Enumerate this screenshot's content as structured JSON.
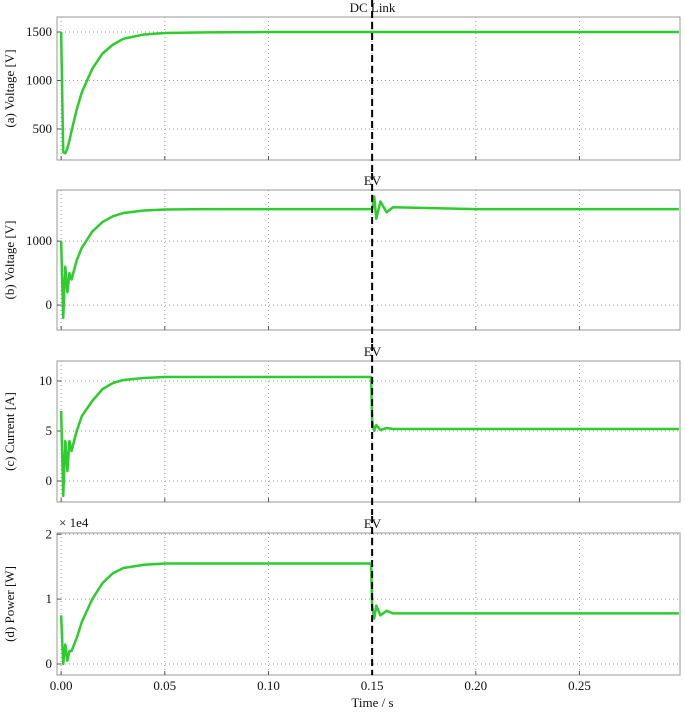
{
  "chart_data": [
    {
      "type": "line",
      "title": "DC Link",
      "ylabel": "(a) Voltage [V]",
      "x": [
        0,
        0.001,
        0.002,
        0.003,
        0.004,
        0.005,
        0.0075,
        0.01,
        0.015,
        0.02,
        0.025,
        0.03,
        0.04,
        0.05,
        0.07,
        0.1,
        0.149,
        0.1495,
        0.15,
        0.151,
        0.152,
        0.154,
        0.157,
        0.16,
        0.2,
        0.25,
        0.298
      ],
      "series": [
        {
          "color": "#2ecc2e",
          "values": [
            1500,
            260,
            250,
            300,
            380,
            480,
            700,
            880,
            1120,
            1280,
            1370,
            1430,
            1475,
            1490,
            1497,
            1500,
            1500,
            1500,
            1500,
            1500,
            1500,
            1500,
            1500,
            1500,
            1500,
            1500,
            1500
          ]
        }
      ],
      "vline": 0.15,
      "xlim": [
        -0.002,
        0.2985
      ],
      "xticks": [
        0,
        0.05,
        0.1,
        0.15,
        0.2,
        0.25
      ],
      "ylim": [
        180,
        1655
      ],
      "yticks": [
        500,
        1000,
        1500
      ],
      "grid": true
    },
    {
      "type": "line",
      "title": "EV",
      "ylabel": "(b) Voltage [V]",
      "x": [
        0,
        0.001,
        0.002,
        0.003,
        0.004,
        0.005,
        0.0075,
        0.01,
        0.015,
        0.02,
        0.025,
        0.03,
        0.04,
        0.05,
        0.07,
        0.1,
        0.149,
        0.1495,
        0.15,
        0.151,
        0.152,
        0.154,
        0.157,
        0.16,
        0.2,
        0.25,
        0.298
      ],
      "series": [
        {
          "color": "#2ecc2e",
          "values": [
            1000,
            -200,
            600,
            200,
            500,
            400,
            700,
            900,
            1150,
            1300,
            1390,
            1440,
            1480,
            1495,
            1500,
            1500,
            1500,
            1500,
            1500,
            1700,
            1350,
            1620,
            1450,
            1530,
            1500,
            1500,
            1500
          ]
        }
      ],
      "vline": 0.15,
      "xlim": [
        -0.002,
        0.2985
      ],
      "xticks": [
        0,
        0.05,
        0.1,
        0.15,
        0.2,
        0.25
      ],
      "ylim": [
        -390,
        1800
      ],
      "yticks": [
        0,
        1000
      ],
      "grid": true
    },
    {
      "type": "line",
      "title": "EV",
      "ylabel": "(c) Current [A]",
      "x": [
        0,
        0.001,
        0.002,
        0.003,
        0.004,
        0.005,
        0.0075,
        0.01,
        0.015,
        0.02,
        0.025,
        0.03,
        0.04,
        0.05,
        0.07,
        0.1,
        0.149,
        0.1495,
        0.15,
        0.151,
        0.152,
        0.154,
        0.157,
        0.16,
        0.2,
        0.25,
        0.298
      ],
      "series": [
        {
          "color": "#2ecc2e",
          "values": [
            7,
            -1.5,
            4,
            1,
            4,
            3,
            5,
            6.5,
            8,
            9.2,
            9.8,
            10.1,
            10.3,
            10.4,
            10.4,
            10.4,
            10.4,
            10.4,
            6,
            5,
            5.6,
            5.1,
            5.3,
            5.2,
            5.2,
            5.2,
            5.2
          ]
        }
      ],
      "vline": 0.15,
      "xlim": [
        -0.002,
        0.2985
      ],
      "xticks": [
        0,
        0.05,
        0.1,
        0.15,
        0.2,
        0.25
      ],
      "ylim": [
        -2.1,
        12
      ],
      "yticks": [
        0,
        5,
        10
      ],
      "grid": true
    },
    {
      "type": "line",
      "title": "EV",
      "ylabel": "(d) Power [W]",
      "xlabel": "Time / s",
      "offset_text": "× 1e4",
      "x": [
        0,
        0.001,
        0.002,
        0.003,
        0.004,
        0.005,
        0.0075,
        0.01,
        0.015,
        0.02,
        0.025,
        0.03,
        0.04,
        0.05,
        0.07,
        0.1,
        0.149,
        0.1495,
        0.15,
        0.151,
        0.152,
        0.154,
        0.157,
        0.16,
        0.2,
        0.25,
        0.298
      ],
      "series": [
        {
          "color": "#2ecc2e",
          "values": [
            0.75,
            0,
            0.3,
            0.05,
            0.2,
            0.2,
            0.4,
            0.65,
            1.0,
            1.25,
            1.4,
            1.48,
            1.53,
            1.55,
            1.55,
            1.55,
            1.55,
            1.55,
            0.9,
            0.7,
            0.9,
            0.75,
            0.82,
            0.78,
            0.78,
            0.78,
            0.78
          ]
        }
      ],
      "vline": 0.15,
      "xlim": [
        -0.002,
        0.2985
      ],
      "xticks": [
        {
          "value": 0,
          "label": "0.00"
        },
        {
          "value": 0.05,
          "label": "0.05"
        },
        {
          "value": 0.1,
          "label": "0.10"
        },
        {
          "value": 0.15,
          "label": "0.15"
        },
        {
          "value": 0.2,
          "label": "0.20"
        },
        {
          "value": 0.25,
          "label": "0.25"
        }
      ],
      "ylim": [
        -0.17,
        2.02
      ],
      "yticks": [
        0,
        1,
        2
      ],
      "grid": true
    }
  ]
}
